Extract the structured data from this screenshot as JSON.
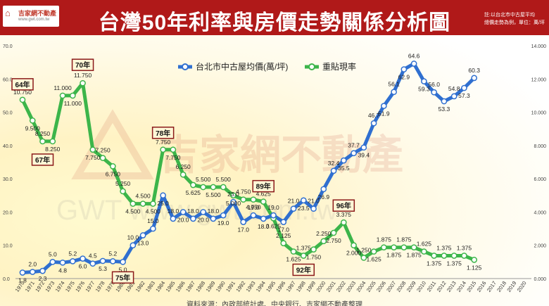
{
  "header": {
    "logo_name": "吉家網不動產",
    "logo_url": "www.gwt.com.tw",
    "title": "台灣50年利率與房價走勢關係分析圖",
    "note_line1": "註:以台北市中古屋平均",
    "note_line2": "總價走勢為例，單位：萬/坪"
  },
  "watermark": {
    "brand": "吉家網不動產",
    "url_text": "GWT   www.gwt.com.tw"
  },
  "footer": {
    "source": "資料來源：內政部統計處、中央銀行、吉家網不動產整理"
  },
  "colors": {
    "price": "#2f6fd0",
    "rate": "#3cb54a",
    "callout_border": "#8b1a1a",
    "header_bg": "#b01919"
  },
  "chart_data": {
    "type": "line",
    "years": [
      "1970",
      "1971",
      "1972",
      "1973",
      "1974",
      "1975",
      "1976",
      "1977",
      "1978",
      "1979",
      "1980",
      "1981",
      "1982",
      "1983",
      "1984",
      "1985",
      "1986",
      "1987",
      "1988",
      "1989",
      "1990",
      "1991",
      "1992",
      "1993",
      "1994",
      "1995",
      "1996",
      "1997",
      "1998",
      "1999",
      "2000",
      "2001",
      "2002",
      "2003",
      "2004",
      "2005",
      "2006",
      "2007",
      "2008",
      "2009",
      "2010",
      "2011",
      "2012",
      "2013",
      "2014",
      "2015",
      "2016",
      "2017",
      "2018",
      "2019",
      "2020"
    ],
    "left_ticks": [
      "0.0",
      "10.0",
      "20.0",
      "30.0",
      "40.0",
      "50.0",
      "60.0",
      "70.0"
    ],
    "right_ticks": [
      "0.000",
      "2.000",
      "4.000",
      "6.000",
      "8.000",
      "10.000",
      "12.000",
      "14.000"
    ],
    "left_range": [
      0,
      70
    ],
    "right_range": [
      0,
      14
    ],
    "series": [
      {
        "name": "台北市中古屋均價(萬/坪)",
        "axis": "left",
        "values": [
          1.8,
          2.0,
          2.3,
          5.0,
          4.8,
          5.2,
          6.0,
          4.5,
          5.3,
          5.2,
          5.0,
          10.0,
          13.0,
          15.0,
          25.0,
          18.0,
          20.0,
          18.0,
          20.0,
          18.0,
          19.0,
          23.0,
          17.0,
          19.0,
          18.0,
          19.0,
          17.0,
          21.0,
          23.5,
          21.0,
          26.9,
          32.4,
          35.5,
          37.7,
          39.4,
          46.7,
          51.9,
          56.1,
          62.9,
          64.6,
          59.3,
          56.0,
          53.3,
          54.8,
          57.3,
          60.3
        ],
        "label_positions": [
          "1970",
          "1971",
          "1972",
          "1973",
          "1974",
          "1975",
          "1976",
          "1977",
          "1978",
          "1979",
          "1980",
          "1981",
          "1982",
          "1983",
          "1984",
          "1985",
          "1986",
          "1987",
          "1988",
          "1989",
          "1990",
          "1991",
          "1992",
          "1993",
          "1994",
          "1995",
          "1996",
          "1997",
          "1998",
          "1999",
          "2000",
          "2001",
          "2002",
          "2003",
          "2004",
          "2005",
          "2006",
          "2007",
          "2008",
          "2009",
          "2010",
          "2011",
          "2012",
          "2013",
          "2014",
          "2015"
        ]
      },
      {
        "name": "重貼現率",
        "axis": "right",
        "values": [
          10.75,
          9.5,
          8.25,
          8.25,
          11.0,
          11.0,
          11.75,
          7.75,
          7.25,
          6.75,
          5.25,
          4.5,
          4.5,
          4.5,
          7.75,
          7.75,
          6.25,
          5.625,
          5.5,
          5.5,
          5.5,
          5.0,
          4.75,
          4.75,
          4.625,
          3.625,
          2.125,
          1.625,
          1.375,
          1.75,
          2.25,
          2.75,
          3.375,
          2.0,
          1.25,
          1.625,
          1.875,
          1.875,
          1.875,
          1.875,
          1.625,
          1.375,
          1.375,
          1.375,
          1.375,
          1.125
        ]
      }
    ],
    "price_labels": [
      "1.8",
      "2.0",
      "2.3",
      "5.0",
      "4.8",
      "5.2",
      "6.0",
      "4.5",
      "5.3",
      "5.2",
      "5.0",
      "10.0",
      "13.0",
      "15.0",
      "25.0",
      "18.0",
      "20.0",
      "18.0",
      "20.0",
      "18.0",
      "19.0",
      "23.0",
      "17.0",
      "19.0",
      "18.0",
      "19.0",
      "17.0",
      "21.0",
      "23.5",
      "21.0",
      "26.9",
      "32.4",
      "35.5",
      "37.7",
      "39.4",
      "46.7",
      "51.9",
      "56.1",
      "62.9",
      "64.6",
      "59.3",
      "56.0",
      "53.3",
      "54.8",
      "57.3",
      "60.3"
    ],
    "rate_labels": [
      "10.750",
      "9.500",
      "8.250",
      "8.250",
      "11.000",
      "11.000",
      "11.750",
      "7.750",
      "7.250",
      "6.750",
      "5.250",
      "4.500",
      "4.500",
      "4.500",
      "7.750",
      "7.750",
      "6.250",
      "5.625",
      "5.500",
      "5.500",
      "5.500",
      "5.000",
      "4.750",
      "4.750",
      "4.625",
      "3.625",
      "2.125",
      "1.625",
      "1.375",
      "1.750",
      "2.250",
      "2.750",
      "3.375",
      "2.000",
      "1.250",
      "1.625",
      "1.875",
      "1.875",
      "1.875",
      "1.875",
      "1.625",
      "1.375",
      "1.375",
      "1.375",
      "1.375",
      "1.125"
    ],
    "callouts": [
      {
        "text": "64年",
        "series": "rate",
        "index": 0,
        "dy": -22
      },
      {
        "text": "67年",
        "series": "rate",
        "index": 2,
        "dy": 26
      },
      {
        "text": "70年",
        "series": "rate",
        "index": 6,
        "dy": -26
      },
      {
        "text": "75年",
        "series": "price",
        "index": 10,
        "dy": 22
      },
      {
        "text": "78年",
        "series": "rate",
        "index": 14,
        "dy": -24
      },
      {
        "text": "89年",
        "series": "rate",
        "index": 24,
        "dy": -22
      },
      {
        "text": "92年",
        "series": "rate",
        "index": 28,
        "dy": 20
      },
      {
        "text": "96年",
        "series": "rate",
        "index": 32,
        "dy": -24
      }
    ],
    "legend_position": "top-center",
    "grid": false
  }
}
